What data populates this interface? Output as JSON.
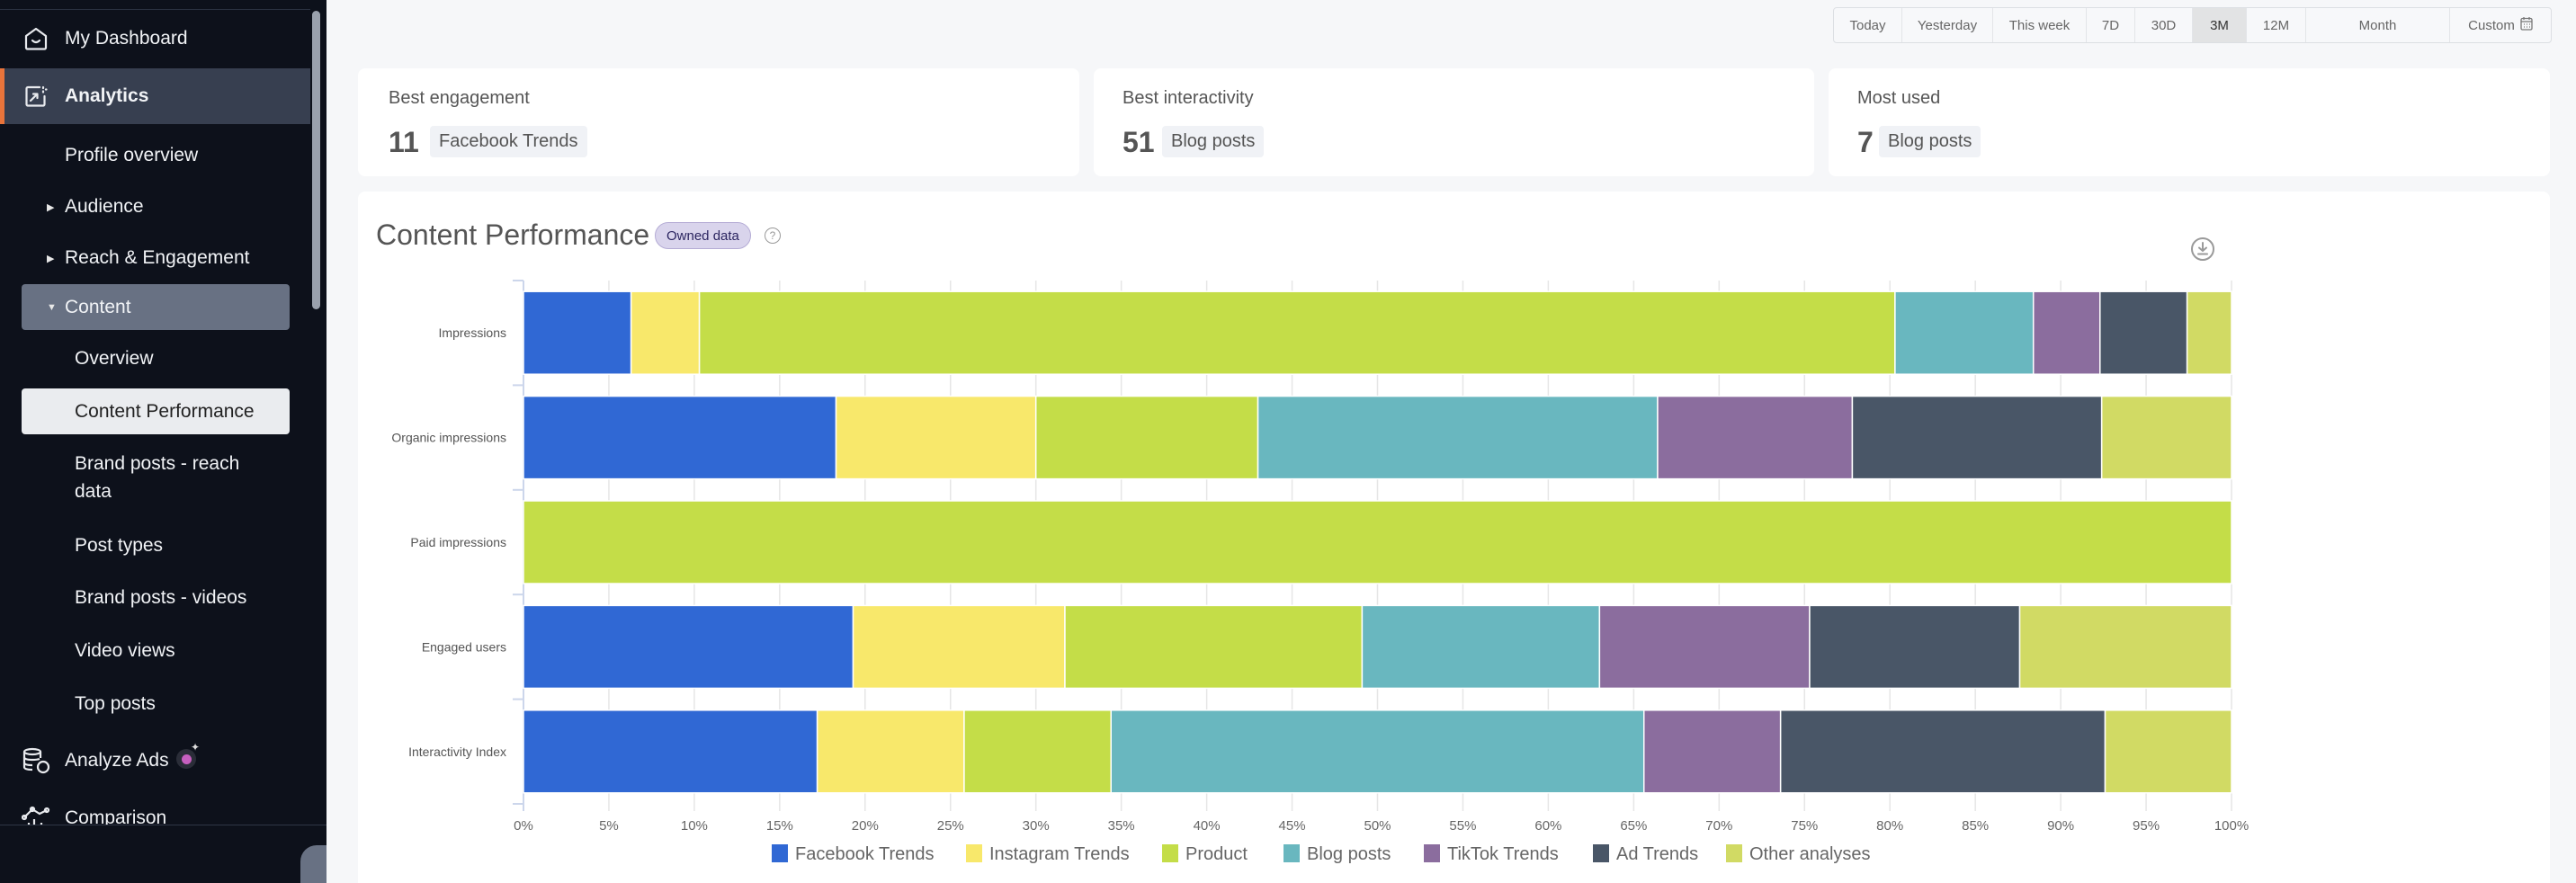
{
  "sidebar": {
    "items": [
      {
        "label": "My Dashboard",
        "icon": "home-icon"
      },
      {
        "label": "Analytics",
        "icon": "analytics-icon"
      },
      {
        "label": "Profile overview"
      },
      {
        "label": "Audience"
      },
      {
        "label": "Reach & Engagement"
      },
      {
        "label": "Content"
      },
      {
        "label": "Overview"
      },
      {
        "label": "Content Performance"
      },
      {
        "label": "Brand posts - reach data"
      },
      {
        "label": "Post types"
      },
      {
        "label": "Brand posts - videos"
      },
      {
        "label": "Video views"
      },
      {
        "label": "Top posts"
      },
      {
        "label": "Analyze Ads",
        "icon": "database-icon"
      },
      {
        "label": "Comparison",
        "icon": "comparison-icon"
      }
    ]
  },
  "daterange": {
    "options": [
      "Today",
      "Yesterday",
      "This week",
      "7D",
      "30D",
      "3M",
      "12M",
      "Month",
      "Custom"
    ],
    "selected": "3M"
  },
  "kpis": [
    {
      "title": "Best engagement",
      "value": "11",
      "tag": "Facebook Trends"
    },
    {
      "title": "Best interactivity",
      "value": "51",
      "tag": "Blog posts"
    },
    {
      "title": "Most used",
      "value": "7",
      "tag": "Blog posts"
    }
  ],
  "chart_card": {
    "title": "Content Performance",
    "badge": "Owned data",
    "help": "?"
  },
  "chart_data": {
    "type": "bar",
    "orientation": "horizontal",
    "stacked": "percent",
    "title": "Content Performance",
    "xlabel": "",
    "ylabel": "",
    "xlim": [
      0,
      100
    ],
    "x_ticks": [
      "0%",
      "5%",
      "10%",
      "15%",
      "20%",
      "25%",
      "30%",
      "35%",
      "40%",
      "45%",
      "50%",
      "55%",
      "60%",
      "65%",
      "70%",
      "75%",
      "80%",
      "85%",
      "90%",
      "95%",
      "100%"
    ],
    "grid": true,
    "legend_position": "bottom",
    "categories": [
      "Impressions",
      "Organic impressions",
      "Paid impressions",
      "Engaged users",
      "Interactivity Index"
    ],
    "series": [
      {
        "name": "Facebook Trends",
        "color": "#3068d4",
        "values": [
          6.3,
          18.3,
          0,
          19.3,
          17.2
        ]
      },
      {
        "name": "Instagram Trends",
        "color": "#f8e86b",
        "values": [
          4.0,
          11.7,
          0,
          12.4,
          8.6
        ]
      },
      {
        "name": "Product",
        "color": "#c4dd48",
        "values": [
          70.0,
          13.0,
          100,
          17.4,
          8.6
        ]
      },
      {
        "name": "Blog posts",
        "color": "#69b7bf",
        "values": [
          8.1,
          23.4,
          0,
          13.9,
          31.2
        ]
      },
      {
        "name": "TikTok Trends",
        "color": "#8b6d9e",
        "values": [
          3.9,
          11.4,
          0,
          12.3,
          8.0
        ]
      },
      {
        "name": "Ad Trends",
        "color": "#495667",
        "values": [
          5.1,
          14.6,
          0,
          12.3,
          19.0
        ]
      },
      {
        "name": "Other analyses",
        "color": "#d1da64",
        "values": [
          2.6,
          7.6,
          0,
          12.4,
          7.4
        ]
      }
    ]
  }
}
